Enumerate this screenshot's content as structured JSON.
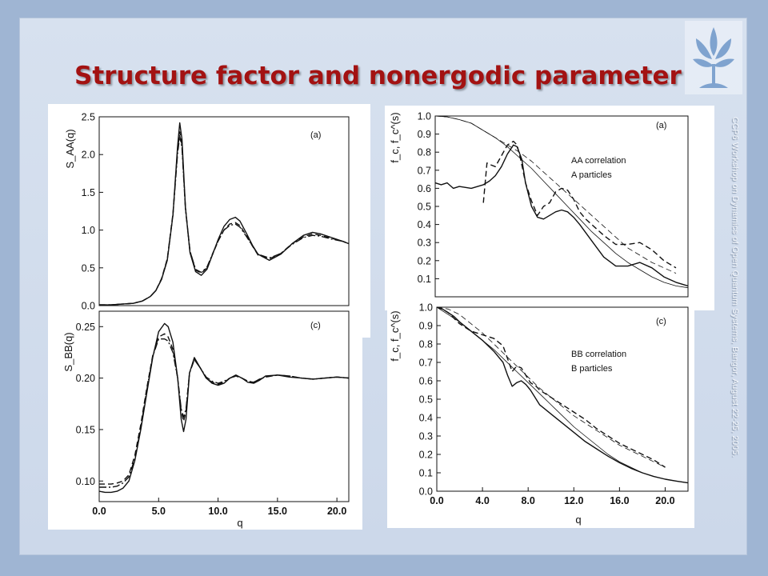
{
  "slide": {
    "title": "Structure factor and nonergodic parameter",
    "side_text": "CCP6 Workshop on Dynamics of Open Quantum Systems, Bangor, August 22-25, 2005.",
    "logo_icon": "plant-emblem-icon",
    "title_color": "#a31212"
  },
  "chart_data": [
    {
      "type": "line",
      "panel": "(a)",
      "ylabel": "S_AA(q)",
      "xlabel": "",
      "xlim": [
        0,
        22
      ],
      "ylim": [
        0,
        2.5
      ],
      "yticks": [
        "0.0",
        "0.5",
        "1.0",
        "1.5",
        "2.0",
        "2.5"
      ],
      "series": [
        {
          "style": "solid",
          "x": [
            0,
            1,
            2,
            3,
            3.8,
            4.5,
            5,
            5.5,
            6,
            6.5,
            6.9,
            7.1,
            7.3,
            7.6,
            8,
            8.5,
            9,
            9.5,
            10,
            10.5,
            11,
            11.5,
            12,
            12.4,
            13,
            13.5,
            14,
            15,
            16,
            17,
            18,
            18.8,
            19.5,
            20.5,
            21.5,
            22
          ],
          "y": [
            0.01,
            0.01,
            0.02,
            0.03,
            0.06,
            0.12,
            0.2,
            0.35,
            0.6,
            1.2,
            2.1,
            2.42,
            2.2,
            1.3,
            0.7,
            0.45,
            0.4,
            0.48,
            0.68,
            0.88,
            1.05,
            1.14,
            1.17,
            1.12,
            0.95,
            0.8,
            0.68,
            0.6,
            0.68,
            0.82,
            0.93,
            0.97,
            0.95,
            0.9,
            0.85,
            0.82
          ]
        },
        {
          "style": "dash",
          "x": [
            0,
            1,
            2,
            3,
            3.8,
            4.5,
            5,
            5.5,
            6,
            6.5,
            6.9,
            7.1,
            7.3,
            7.6,
            8,
            8.5,
            9,
            9.5,
            10,
            10.5,
            11,
            11.5,
            12,
            12.4,
            13,
            13.5,
            14,
            15,
            16,
            17,
            18,
            18.8,
            19.5,
            20.5,
            21.5,
            22
          ],
          "y": [
            0.01,
            0.01,
            0.02,
            0.03,
            0.06,
            0.12,
            0.2,
            0.36,
            0.62,
            1.22,
            2.05,
            2.3,
            2.12,
            1.3,
            0.72,
            0.47,
            0.43,
            0.5,
            0.68,
            0.86,
            1.0,
            1.08,
            1.1,
            1.06,
            0.92,
            0.79,
            0.67,
            0.62,
            0.69,
            0.82,
            0.91,
            0.95,
            0.93,
            0.89,
            0.85,
            0.82
          ]
        },
        {
          "style": "dot-dash",
          "x": [
            0,
            1,
            2,
            3,
            3.8,
            4.5,
            5,
            5.5,
            6,
            6.5,
            6.9,
            7.1,
            7.3,
            7.6,
            8,
            8.5,
            9,
            9.5,
            10,
            10.5,
            11,
            11.5,
            12,
            12.4,
            13,
            13.5,
            14,
            15,
            16,
            17,
            18,
            18.8,
            19.5,
            20.5,
            21.5,
            22
          ],
          "y": [
            0.01,
            0.01,
            0.02,
            0.03,
            0.06,
            0.12,
            0.2,
            0.35,
            0.61,
            1.2,
            2.0,
            2.25,
            2.08,
            1.28,
            0.72,
            0.48,
            0.44,
            0.51,
            0.69,
            0.86,
            1.0,
            1.06,
            1.08,
            1.04,
            0.91,
            0.79,
            0.68,
            0.63,
            0.69,
            0.81,
            0.9,
            0.93,
            0.92,
            0.88,
            0.85,
            0.82
          ]
        }
      ]
    },
    {
      "type": "line",
      "panel": "(c)",
      "ylabel": "S_BB(q)",
      "xlabel": "q",
      "xlim": [
        0,
        21
      ],
      "ylim": [
        0.08,
        0.265
      ],
      "xticks": [
        "0.0",
        "5.0",
        "10.0",
        "15.0",
        "20.0"
      ],
      "yticks": [
        "0.10",
        "0.15",
        "0.20",
        "0.25"
      ],
      "series": [
        {
          "style": "solid",
          "x": [
            0,
            0.5,
            1,
            1.5,
            2,
            2.5,
            3,
            3.5,
            4,
            4.5,
            5,
            5.5,
            5.8,
            6.2,
            6.6,
            6.9,
            7.1,
            7.3,
            7.6,
            8,
            8.5,
            9,
            9.5,
            10,
            10.5,
            11,
            11.5,
            12,
            12.5,
            13,
            13.5,
            14,
            15,
            16,
            17,
            18,
            19,
            20,
            21
          ],
          "y": [
            0.09,
            0.089,
            0.089,
            0.09,
            0.093,
            0.1,
            0.12,
            0.15,
            0.185,
            0.22,
            0.245,
            0.253,
            0.25,
            0.235,
            0.2,
            0.16,
            0.148,
            0.16,
            0.205,
            0.22,
            0.21,
            0.2,
            0.195,
            0.193,
            0.195,
            0.2,
            0.203,
            0.2,
            0.196,
            0.195,
            0.198,
            0.202,
            0.203,
            0.201,
            0.2,
            0.199,
            0.2,
            0.201,
            0.2
          ]
        },
        {
          "style": "dash",
          "x": [
            0,
            0.5,
            1,
            1.5,
            2,
            2.5,
            3,
            3.5,
            4,
            4.5,
            5,
            5.5,
            5.8,
            6.2,
            6.6,
            6.9,
            7.1,
            7.3,
            7.6,
            8,
            8.5,
            9,
            9.5,
            10,
            10.5,
            11,
            11.5,
            12,
            12.5,
            13,
            13.5,
            14,
            15,
            16,
            17,
            18,
            19,
            20,
            21
          ],
          "y": [
            0.097,
            0.097,
            0.097,
            0.098,
            0.1,
            0.106,
            0.125,
            0.155,
            0.19,
            0.222,
            0.24,
            0.243,
            0.24,
            0.228,
            0.2,
            0.168,
            0.158,
            0.168,
            0.205,
            0.218,
            0.21,
            0.2,
            0.196,
            0.194,
            0.196,
            0.2,
            0.202,
            0.2,
            0.197,
            0.196,
            0.199,
            0.201,
            0.203,
            0.202,
            0.2,
            0.199,
            0.2,
            0.201,
            0.2
          ]
        },
        {
          "style": "dot-dash",
          "x": [
            0,
            0.5,
            1,
            1.5,
            2,
            2.5,
            3,
            3.5,
            4,
            4.5,
            5,
            5.5,
            5.8,
            6.2,
            6.6,
            6.9,
            7.1,
            7.3,
            7.6,
            8,
            8.5,
            9,
            9.5,
            10,
            10.5,
            11,
            11.5,
            12,
            12.5,
            13,
            13.5,
            14,
            15,
            16,
            17,
            18,
            19,
            20,
            21
          ],
          "y": [
            0.094,
            0.094,
            0.094,
            0.095,
            0.098,
            0.104,
            0.122,
            0.152,
            0.188,
            0.221,
            0.238,
            0.238,
            0.236,
            0.225,
            0.2,
            0.17,
            0.162,
            0.17,
            0.205,
            0.218,
            0.21,
            0.201,
            0.197,
            0.195,
            0.197,
            0.2,
            0.202,
            0.2,
            0.197,
            0.196,
            0.199,
            0.201,
            0.203,
            0.202,
            0.2,
            0.199,
            0.2,
            0.201,
            0.2
          ]
        }
      ]
    },
    {
      "type": "line",
      "panel": "(a)",
      "ylabel": "f_c, f_c^(s)",
      "xlabel": "",
      "xlim": [
        0,
        21
      ],
      "ylim": [
        0,
        1.0
      ],
      "yticks": [
        "0.1",
        "0.2",
        "0.3",
        "0.4",
        "0.5",
        "0.6",
        "0.7",
        "0.8",
        "0.9",
        "1.0"
      ],
      "legend": [
        "AA correlation",
        "A particles"
      ],
      "series": [
        {
          "style": "solid",
          "x": [
            0,
            0.5,
            1,
            1.5,
            2,
            3,
            4,
            4.5,
            5,
            5.5,
            6,
            6.5,
            6.8,
            7.2,
            7.5,
            8,
            8.5,
            9,
            9.5,
            10,
            10.5,
            11,
            11.5,
            12,
            13,
            14,
            15,
            16,
            17,
            18,
            19,
            20,
            21
          ],
          "y": [
            0.63,
            0.62,
            0.63,
            0.6,
            0.61,
            0.6,
            0.62,
            0.64,
            0.67,
            0.72,
            0.79,
            0.84,
            0.83,
            0.76,
            0.63,
            0.5,
            0.44,
            0.43,
            0.45,
            0.47,
            0.48,
            0.47,
            0.44,
            0.4,
            0.31,
            0.22,
            0.17,
            0.17,
            0.19,
            0.16,
            0.11,
            0.08,
            0.06
          ]
        },
        {
          "style": "dash",
          "x": [
            4,
            4.3,
            4.6,
            5,
            5.5,
            6,
            6.5,
            6.8,
            7.1,
            7.5,
            8,
            8.5,
            9,
            9.5,
            10,
            10.5,
            11,
            11.5,
            12,
            12.5,
            13,
            14,
            15,
            16,
            17,
            18,
            19,
            20
          ],
          "y": [
            0.52,
            0.74,
            0.73,
            0.72,
            0.78,
            0.84,
            0.86,
            0.84,
            0.76,
            0.63,
            0.53,
            0.45,
            0.5,
            0.52,
            0.58,
            0.6,
            0.59,
            0.54,
            0.47,
            0.43,
            0.4,
            0.34,
            0.29,
            0.29,
            0.3,
            0.26,
            0.2,
            0.16
          ]
        },
        {
          "style": "solid",
          "thin": true,
          "x": [
            0,
            1,
            2,
            3,
            4,
            5,
            6,
            7,
            8,
            9,
            10,
            11,
            12,
            13,
            14,
            15,
            16,
            17,
            18,
            19,
            20,
            21
          ],
          "y": [
            1.0,
            0.995,
            0.98,
            0.96,
            0.92,
            0.88,
            0.83,
            0.77,
            0.71,
            0.64,
            0.57,
            0.5,
            0.43,
            0.36,
            0.3,
            0.24,
            0.19,
            0.15,
            0.11,
            0.08,
            0.06,
            0.05
          ]
        },
        {
          "style": "dash",
          "thin": true,
          "x": [
            0,
            1,
            2,
            3,
            4,
            5,
            6,
            7,
            8,
            9,
            10,
            11,
            12,
            13,
            14,
            15,
            16,
            17,
            18,
            19,
            20
          ],
          "y": [
            1.0,
            0.995,
            0.98,
            0.96,
            0.92,
            0.88,
            0.84,
            0.8,
            0.75,
            0.69,
            0.63,
            0.57,
            0.51,
            0.45,
            0.39,
            0.33,
            0.27,
            0.23,
            0.19,
            0.16,
            0.13
          ]
        }
      ]
    },
    {
      "type": "line",
      "panel": "(c)",
      "ylabel": "f_c, f_c^(s)",
      "xlabel": "q",
      "xlim": [
        0,
        22
      ],
      "ylim": [
        0,
        1.0
      ],
      "xticks": [
        "0.0",
        "4.0",
        "8.0",
        "12.0",
        "16.0",
        "20.0"
      ],
      "yticks": [
        "0.0",
        "0.1",
        "0.2",
        "0.3",
        "0.4",
        "0.5",
        "0.6",
        "0.7",
        "0.8",
        "0.9",
        "1.0"
      ],
      "legend": [
        "BB correlation",
        "B particles"
      ],
      "series": [
        {
          "style": "solid",
          "x": [
            0,
            0.5,
            1,
            1.5,
            2,
            3,
            4,
            5,
            5.8,
            6.2,
            6.6,
            7,
            7.4,
            7.8,
            8.2,
            8.7,
            9,
            10,
            11,
            12,
            13,
            14,
            15,
            16,
            17,
            18,
            19,
            20,
            21,
            22
          ],
          "y": [
            1.0,
            0.99,
            0.97,
            0.95,
            0.92,
            0.87,
            0.82,
            0.76,
            0.7,
            0.63,
            0.57,
            0.59,
            0.6,
            0.58,
            0.55,
            0.5,
            0.47,
            0.42,
            0.37,
            0.32,
            0.27,
            0.23,
            0.19,
            0.155,
            0.125,
            0.1,
            0.08,
            0.065,
            0.055,
            0.045
          ]
        },
        {
          "style": "dash",
          "x": [
            0,
            0.5,
            1,
            1.5,
            2,
            3,
            4,
            5,
            5.8,
            6.2,
            6.6,
            7,
            7.4,
            7.8,
            8.2,
            8.7,
            9,
            10,
            11,
            12,
            13,
            14,
            15,
            16,
            17,
            18,
            19,
            20
          ],
          "y": [
            1.0,
            0.99,
            0.97,
            0.94,
            0.91,
            0.87,
            0.85,
            0.83,
            0.79,
            0.72,
            0.65,
            0.68,
            0.67,
            0.63,
            0.59,
            0.57,
            0.55,
            0.51,
            0.47,
            0.43,
            0.39,
            0.34,
            0.3,
            0.26,
            0.23,
            0.2,
            0.17,
            0.13
          ]
        },
        {
          "style": "solid",
          "thin": true,
          "x": [
            0,
            1,
            2,
            3,
            4,
            5,
            6,
            7,
            8,
            9,
            10,
            11,
            12,
            13,
            14,
            15,
            16,
            17,
            18,
            19,
            20,
            21,
            22
          ],
          "y": [
            1.0,
            0.96,
            0.92,
            0.87,
            0.82,
            0.77,
            0.71,
            0.65,
            0.59,
            0.53,
            0.47,
            0.41,
            0.35,
            0.3,
            0.25,
            0.2,
            0.16,
            0.13,
            0.1,
            0.08,
            0.065,
            0.055,
            0.045
          ]
        },
        {
          "style": "dash",
          "thin": true,
          "x": [
            0,
            1,
            2,
            3,
            4,
            5,
            6,
            7,
            8,
            9,
            10,
            11,
            12,
            13,
            14,
            15,
            16,
            17,
            18,
            19,
            20
          ],
          "y": [
            1.0,
            0.99,
            0.96,
            0.91,
            0.86,
            0.8,
            0.74,
            0.68,
            0.62,
            0.56,
            0.51,
            0.46,
            0.41,
            0.37,
            0.33,
            0.29,
            0.25,
            0.22,
            0.19,
            0.16,
            0.13
          ]
        }
      ]
    }
  ]
}
